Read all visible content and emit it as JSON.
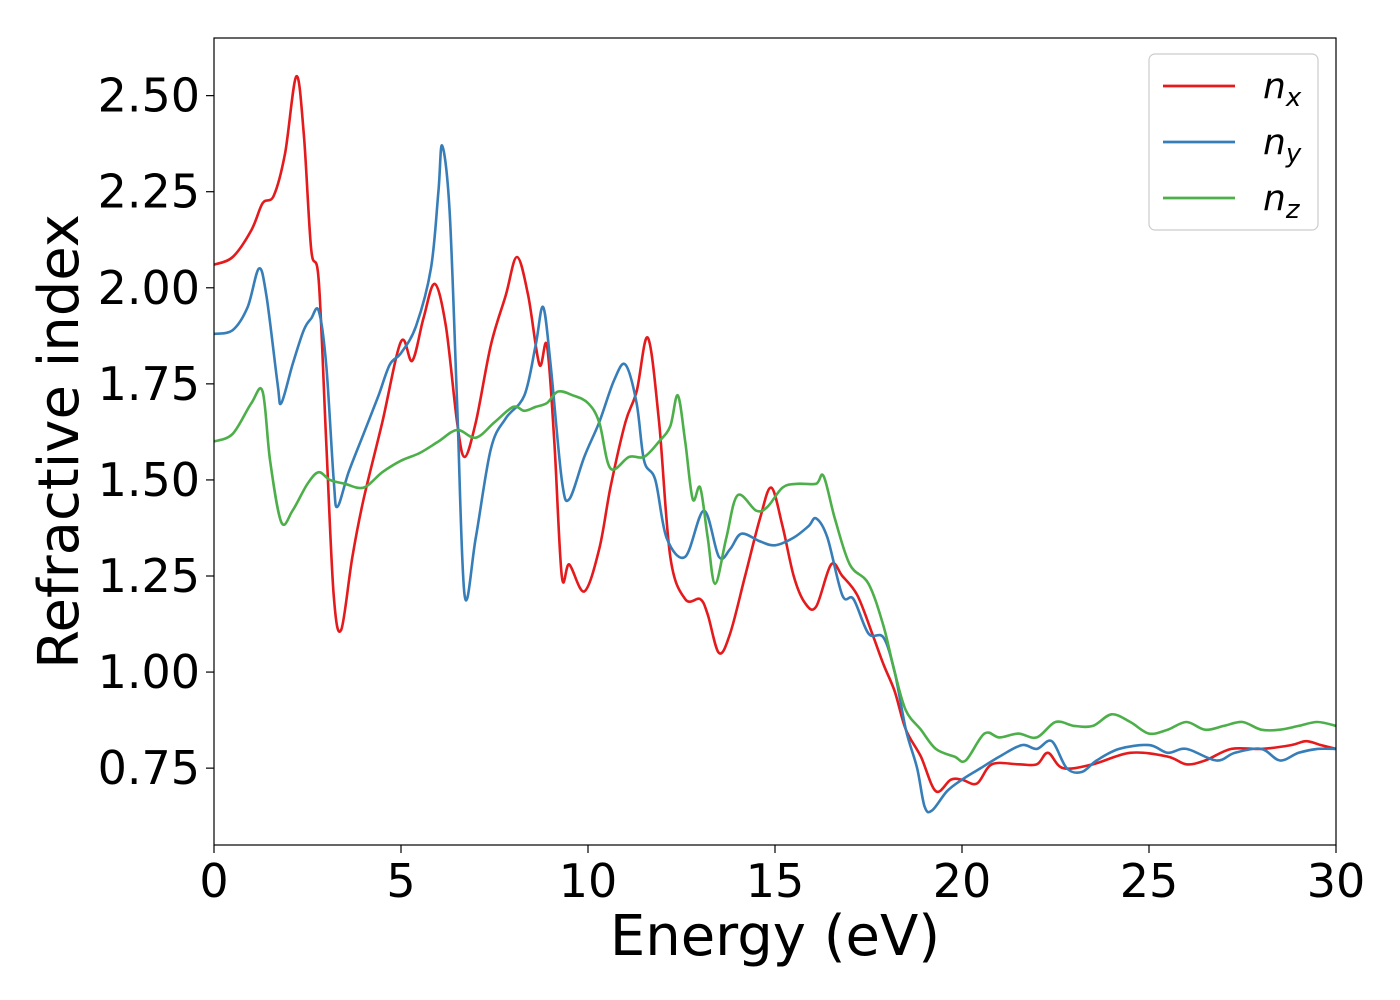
{
  "chart_data": {
    "type": "line",
    "title": "",
    "xlabel": "Energy (eV)",
    "ylabel": "Refractive index",
    "xlim": [
      0,
      30
    ],
    "ylim": [
      0.55,
      2.65
    ],
    "xticks": [
      0,
      5,
      10,
      15,
      20,
      25,
      30
    ],
    "xtick_labels": [
      "0",
      "5",
      "10",
      "15",
      "20",
      "25",
      "30"
    ],
    "yticks": [
      0.75,
      1.0,
      1.25,
      1.5,
      1.75,
      2.0,
      2.25,
      2.5
    ],
    "ytick_labels": [
      "0.75",
      "1.00",
      "1.25",
      "1.50",
      "1.75",
      "2.00",
      "2.25",
      "2.50"
    ],
    "grid": false,
    "legend_position": "top-right",
    "series": [
      {
        "name": "n",
        "subscript": "x",
        "color": "#e41a1c",
        "points": [
          [
            0,
            2.06
          ],
          [
            0.5,
            2.08
          ],
          [
            1.0,
            2.15
          ],
          [
            1.3,
            2.22
          ],
          [
            1.6,
            2.24
          ],
          [
            1.9,
            2.35
          ],
          [
            2.2,
            2.55
          ],
          [
            2.4,
            2.4
          ],
          [
            2.6,
            2.1
          ],
          [
            2.8,
            2.02
          ],
          [
            3.0,
            1.6
          ],
          [
            3.2,
            1.2
          ],
          [
            3.4,
            1.11
          ],
          [
            3.7,
            1.3
          ],
          [
            4.0,
            1.45
          ],
          [
            4.5,
            1.65
          ],
          [
            5.0,
            1.86
          ],
          [
            5.3,
            1.81
          ],
          [
            5.6,
            1.92
          ],
          [
            5.9,
            2.01
          ],
          [
            6.2,
            1.9
          ],
          [
            6.5,
            1.65
          ],
          [
            6.7,
            1.56
          ],
          [
            7.0,
            1.65
          ],
          [
            7.4,
            1.85
          ],
          [
            7.8,
            1.98
          ],
          [
            8.1,
            2.08
          ],
          [
            8.4,
            1.98
          ],
          [
            8.7,
            1.8
          ],
          [
            8.9,
            1.85
          ],
          [
            9.1,
            1.6
          ],
          [
            9.3,
            1.25
          ],
          [
            9.5,
            1.28
          ],
          [
            9.9,
            1.21
          ],
          [
            10.3,
            1.32
          ],
          [
            10.6,
            1.48
          ],
          [
            11.0,
            1.65
          ],
          [
            11.3,
            1.73
          ],
          [
            11.6,
            1.87
          ],
          [
            11.9,
            1.65
          ],
          [
            12.2,
            1.3
          ],
          [
            12.6,
            1.19
          ],
          [
            13.0,
            1.19
          ],
          [
            13.2,
            1.15
          ],
          [
            13.5,
            1.05
          ],
          [
            13.8,
            1.1
          ],
          [
            14.2,
            1.25
          ],
          [
            14.6,
            1.4
          ],
          [
            14.9,
            1.48
          ],
          [
            15.2,
            1.38
          ],
          [
            15.5,
            1.25
          ],
          [
            15.8,
            1.18
          ],
          [
            16.1,
            1.17
          ],
          [
            16.5,
            1.28
          ],
          [
            16.8,
            1.25
          ],
          [
            17.2,
            1.2
          ],
          [
            17.6,
            1.1
          ],
          [
            17.9,
            1.02
          ],
          [
            18.2,
            0.95
          ],
          [
            18.5,
            0.85
          ],
          [
            18.9,
            0.78
          ],
          [
            19.3,
            0.69
          ],
          [
            19.7,
            0.72
          ],
          [
            20.0,
            0.72
          ],
          [
            20.4,
            0.71
          ],
          [
            20.8,
            0.76
          ],
          [
            21.5,
            0.76
          ],
          [
            22.0,
            0.76
          ],
          [
            22.3,
            0.79
          ],
          [
            22.7,
            0.75
          ],
          [
            23.5,
            0.76
          ],
          [
            24.5,
            0.79
          ],
          [
            25.5,
            0.78
          ],
          [
            26.0,
            0.76
          ],
          [
            26.5,
            0.77
          ],
          [
            27.2,
            0.8
          ],
          [
            28.0,
            0.8
          ],
          [
            28.8,
            0.81
          ],
          [
            29.2,
            0.82
          ],
          [
            29.6,
            0.81
          ],
          [
            30.0,
            0.8
          ]
        ]
      },
      {
        "name": "n",
        "subscript": "y",
        "color": "#377eb8",
        "points": [
          [
            0,
            1.88
          ],
          [
            0.5,
            1.89
          ],
          [
            0.9,
            1.95
          ],
          [
            1.2,
            2.05
          ],
          [
            1.4,
            1.98
          ],
          [
            1.7,
            1.75
          ],
          [
            1.8,
            1.7
          ],
          [
            2.1,
            1.8
          ],
          [
            2.4,
            1.89
          ],
          [
            2.6,
            1.92
          ],
          [
            2.8,
            1.94
          ],
          [
            3.0,
            1.8
          ],
          [
            3.2,
            1.5
          ],
          [
            3.3,
            1.43
          ],
          [
            3.6,
            1.52
          ],
          [
            4.0,
            1.62
          ],
          [
            4.4,
            1.72
          ],
          [
            4.7,
            1.8
          ],
          [
            5.0,
            1.83
          ],
          [
            5.4,
            1.9
          ],
          [
            5.8,
            2.05
          ],
          [
            6.0,
            2.25
          ],
          [
            6.1,
            2.37
          ],
          [
            6.3,
            2.2
          ],
          [
            6.5,
            1.7
          ],
          [
            6.7,
            1.2
          ],
          [
            7.0,
            1.35
          ],
          [
            7.4,
            1.58
          ],
          [
            7.8,
            1.66
          ],
          [
            8.3,
            1.72
          ],
          [
            8.6,
            1.85
          ],
          [
            8.8,
            1.95
          ],
          [
            9.0,
            1.8
          ],
          [
            9.3,
            1.5
          ],
          [
            9.5,
            1.45
          ],
          [
            9.9,
            1.56
          ],
          [
            10.3,
            1.65
          ],
          [
            10.7,
            1.76
          ],
          [
            11.0,
            1.8
          ],
          [
            11.3,
            1.7
          ],
          [
            11.5,
            1.55
          ],
          [
            11.8,
            1.5
          ],
          [
            12.1,
            1.35
          ],
          [
            12.6,
            1.3
          ],
          [
            13.1,
            1.42
          ],
          [
            13.5,
            1.3
          ],
          [
            13.8,
            1.32
          ],
          [
            14.1,
            1.36
          ],
          [
            14.6,
            1.34
          ],
          [
            15.0,
            1.33
          ],
          [
            15.5,
            1.35
          ],
          [
            15.9,
            1.38
          ],
          [
            16.1,
            1.4
          ],
          [
            16.4,
            1.35
          ],
          [
            16.8,
            1.2
          ],
          [
            17.1,
            1.19
          ],
          [
            17.5,
            1.1
          ],
          [
            17.9,
            1.09
          ],
          [
            18.2,
            1.0
          ],
          [
            18.5,
            0.85
          ],
          [
            18.8,
            0.75
          ],
          [
            19.0,
            0.65
          ],
          [
            19.2,
            0.64
          ],
          [
            19.6,
            0.69
          ],
          [
            20.0,
            0.72
          ],
          [
            20.5,
            0.75
          ],
          [
            21.0,
            0.78
          ],
          [
            21.6,
            0.81
          ],
          [
            22.0,
            0.8
          ],
          [
            22.4,
            0.82
          ],
          [
            22.8,
            0.75
          ],
          [
            23.2,
            0.74
          ],
          [
            23.6,
            0.77
          ],
          [
            24.2,
            0.8
          ],
          [
            25.0,
            0.81
          ],
          [
            25.5,
            0.79
          ],
          [
            26.0,
            0.8
          ],
          [
            26.8,
            0.77
          ],
          [
            27.3,
            0.79
          ],
          [
            28.0,
            0.8
          ],
          [
            28.5,
            0.77
          ],
          [
            29.0,
            0.79
          ],
          [
            29.5,
            0.8
          ],
          [
            30.0,
            0.8
          ]
        ]
      },
      {
        "name": "n",
        "subscript": "z",
        "color": "#4daf4a",
        "points": [
          [
            0,
            1.6
          ],
          [
            0.5,
            1.62
          ],
          [
            1.0,
            1.7
          ],
          [
            1.3,
            1.73
          ],
          [
            1.5,
            1.55
          ],
          [
            1.8,
            1.39
          ],
          [
            2.1,
            1.42
          ],
          [
            2.5,
            1.49
          ],
          [
            2.8,
            1.52
          ],
          [
            3.1,
            1.5
          ],
          [
            3.5,
            1.49
          ],
          [
            4.0,
            1.48
          ],
          [
            4.5,
            1.52
          ],
          [
            5.0,
            1.55
          ],
          [
            5.5,
            1.57
          ],
          [
            6.0,
            1.6
          ],
          [
            6.5,
            1.63
          ],
          [
            7.0,
            1.61
          ],
          [
            7.5,
            1.65
          ],
          [
            8.0,
            1.69
          ],
          [
            8.3,
            1.68
          ],
          [
            8.6,
            1.69
          ],
          [
            8.9,
            1.7
          ],
          [
            9.2,
            1.73
          ],
          [
            9.6,
            1.72
          ],
          [
            10.0,
            1.7
          ],
          [
            10.3,
            1.65
          ],
          [
            10.6,
            1.53
          ],
          [
            11.1,
            1.56
          ],
          [
            11.5,
            1.56
          ],
          [
            11.9,
            1.6
          ],
          [
            12.2,
            1.64
          ],
          [
            12.4,
            1.72
          ],
          [
            12.6,
            1.6
          ],
          [
            12.8,
            1.45
          ],
          [
            13.0,
            1.48
          ],
          [
            13.2,
            1.35
          ],
          [
            13.4,
            1.23
          ],
          [
            13.7,
            1.35
          ],
          [
            14.0,
            1.46
          ],
          [
            14.5,
            1.42
          ],
          [
            14.8,
            1.43
          ],
          [
            15.2,
            1.48
          ],
          [
            15.6,
            1.49
          ],
          [
            16.1,
            1.49
          ],
          [
            16.3,
            1.51
          ],
          [
            16.6,
            1.4
          ],
          [
            17.0,
            1.28
          ],
          [
            17.5,
            1.23
          ],
          [
            17.9,
            1.12
          ],
          [
            18.2,
            1.0
          ],
          [
            18.5,
            0.9
          ],
          [
            18.9,
            0.85
          ],
          [
            19.3,
            0.8
          ],
          [
            19.8,
            0.78
          ],
          [
            20.1,
            0.77
          ],
          [
            20.6,
            0.84
          ],
          [
            21.0,
            0.83
          ],
          [
            21.5,
            0.84
          ],
          [
            22.0,
            0.83
          ],
          [
            22.5,
            0.87
          ],
          [
            23.0,
            0.86
          ],
          [
            23.5,
            0.86
          ],
          [
            24.0,
            0.89
          ],
          [
            24.5,
            0.87
          ],
          [
            25.0,
            0.84
          ],
          [
            25.5,
            0.85
          ],
          [
            26.0,
            0.87
          ],
          [
            26.5,
            0.85
          ],
          [
            27.0,
            0.86
          ],
          [
            27.5,
            0.87
          ],
          [
            28.0,
            0.85
          ],
          [
            28.5,
            0.85
          ],
          [
            29.0,
            0.86
          ],
          [
            29.5,
            0.87
          ],
          [
            30.0,
            0.86
          ]
        ]
      }
    ]
  }
}
